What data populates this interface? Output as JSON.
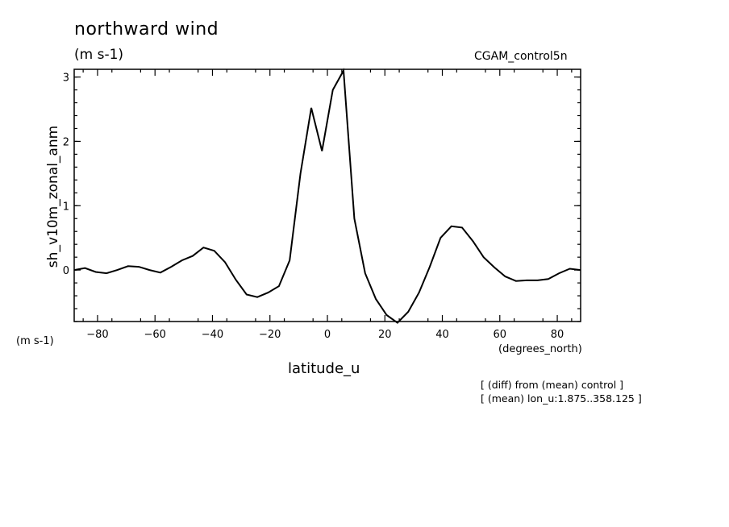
{
  "chart_data": {
    "type": "line",
    "title": "northward wind",
    "subtitle": "(m s-1)",
    "run_label": "CGAM_control5n",
    "xlabel": "latitude_u",
    "ylabel": "sh_v10m_zonal_anm",
    "x_units": "(degrees_north)",
    "y_units": "(m s-1)",
    "notes": [
      "[ (diff) from (mean) control ]",
      "[ (mean) lon_u:1.875..358.125 ]"
    ],
    "xlim": [
      -88.125,
      88.125
    ],
    "ylim": [
      -0.8,
      3.12
    ],
    "xticks": [
      -80,
      -60,
      -40,
      -20,
      0,
      20,
      40,
      60,
      80
    ],
    "xtick_labels": [
      "−80",
      "−60",
      "−40",
      "−20",
      "0",
      "20",
      "40",
      "60",
      "80"
    ],
    "yticks": [
      0,
      1,
      2,
      3
    ],
    "ytick_labels": [
      "0",
      "1",
      "2",
      "3"
    ],
    "grid": false,
    "legend": "none",
    "series": [
      {
        "color": "#000000",
        "x": [
          -88.125,
          -84.375,
          -80.625,
          -76.875,
          -73.125,
          -69.375,
          -65.625,
          -61.875,
          -58.125,
          -54.375,
          -50.625,
          -46.875,
          -43.125,
          -39.375,
          -35.625,
          -31.875,
          -28.125,
          -24.375,
          -20.625,
          -16.875,
          -13.125,
          -9.375,
          -5.625,
          -1.875,
          1.875,
          5.625,
          9.375,
          13.125,
          16.875,
          20.625,
          24.375,
          28.125,
          31.875,
          35.625,
          39.375,
          43.125,
          46.875,
          50.625,
          54.375,
          58.125,
          61.875,
          65.625,
          69.375,
          73.125,
          76.875,
          80.625,
          84.375,
          88.125
        ],
        "y": [
          0.0,
          0.03,
          -0.03,
          -0.05,
          0.0,
          0.06,
          0.05,
          0.0,
          -0.04,
          0.05,
          0.15,
          0.22,
          0.35,
          0.3,
          0.12,
          -0.15,
          -0.38,
          -0.42,
          -0.35,
          -0.25,
          0.15,
          1.5,
          2.52,
          1.85,
          2.8,
          3.1,
          0.8,
          -0.05,
          -0.45,
          -0.7,
          -0.82,
          -0.65,
          -0.35,
          0.05,
          0.5,
          0.68,
          0.66,
          0.45,
          0.2,
          0.04,
          -0.1,
          -0.17,
          -0.16,
          -0.16,
          -0.14,
          -0.05,
          0.02,
          0.0
        ]
      }
    ]
  }
}
